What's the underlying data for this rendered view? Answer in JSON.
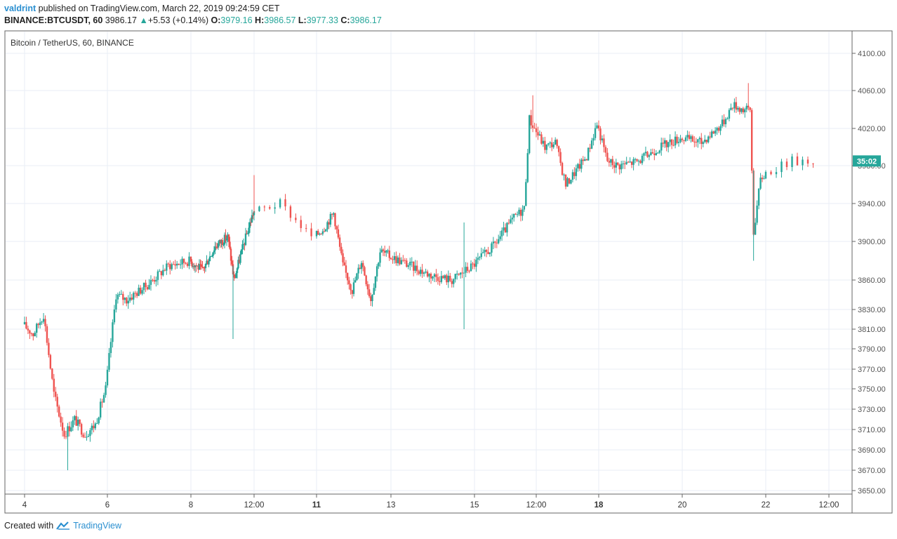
{
  "header": {
    "user": "valdrint",
    "published_text": " published on TradingView.com, March 22, 2019 09:24:59 CET",
    "symbol": "BINANCE:BTCUSDT, 60",
    "last": "3986.17",
    "change_arrow": "▲",
    "change": "+5.53 (+0.14%)",
    "o_label": "O:",
    "o_value": "3979.16",
    "h_label": "H:",
    "h_value": "3986.57",
    "l_label": "L:",
    "l_value": "3977.33",
    "c_label": "C:",
    "c_value": "3986.17"
  },
  "footer": {
    "created_with": "Created with",
    "brand": "TradingView"
  },
  "colors": {
    "up": "#26a69a",
    "down": "#ef5350",
    "grid": "#e8eef5",
    "axis": "#555555",
    "price_tag": "#26a69a"
  },
  "chart_data": {
    "type": "candlestick",
    "title": "Bitcoin / TetherUS, 60, BINANCE",
    "xlabel": "",
    "ylabel": "",
    "ylim": [
      3650,
      4100
    ],
    "y_ticks": [
      "4100.00",
      "4060.00",
      "4020.00",
      "3980.00",
      "3940.00",
      "3900.00",
      "3860.00",
      "3830.00",
      "3810.00",
      "3790.00",
      "3770.00",
      "3750.00",
      "3730.00",
      "3710.00",
      "3690.00",
      "3670.00",
      "3650.00"
    ],
    "x_tick_labels": [
      "4",
      "6",
      "8",
      "12:00",
      "11",
      "13",
      "15",
      "12:00",
      "18",
      "20",
      "22",
      "12:00"
    ],
    "bold_x_ticks": [
      "11",
      "18"
    ],
    "current_price_tag": "35:02",
    "current_price": 3985,
    "grid": true,
    "price_path": [
      {
        "t": "Mar 4 00:00",
        "p": 3815
      },
      {
        "t": "Mar 4 06:00",
        "p": 3805
      },
      {
        "t": "Mar 4 12:00",
        "p": 3825
      },
      {
        "t": "Mar 4 18:00",
        "p": 3745
      },
      {
        "t": "Mar 5 00:00",
        "p": 3705
      },
      {
        "t": "Mar 5 06:00",
        "p": 3720
      },
      {
        "t": "Mar 5 12:00",
        "p": 3705
      },
      {
        "t": "Mar 5 18:00",
        "p": 3715
      },
      {
        "t": "Mar 6 00:00",
        "p": 3750
      },
      {
        "t": "Mar 6 06:00",
        "p": 3845
      },
      {
        "t": "Mar 6 12:00",
        "p": 3840
      },
      {
        "t": "Mar 7 00:00",
        "p": 3855
      },
      {
        "t": "Mar 7 12:00",
        "p": 3875
      },
      {
        "t": "Mar 8 00:00",
        "p": 3880
      },
      {
        "t": "Mar 8 12:00",
        "p": 3870
      },
      {
        "t": "Mar 9 00:00",
        "p": 3895
      },
      {
        "t": "Mar 9 12:00",
        "p": 3905
      },
      {
        "t": "Mar 9 18:00",
        "p": 3860
      },
      {
        "t": "Mar 10 00:00",
        "p": 3885
      },
      {
        "t": "Mar 10 12:00",
        "p": 3930
      },
      {
        "t": "Mar 10 18:00",
        "p": 3940
      },
      {
        "t": "Mar 11 00:00",
        "p": 3905
      },
      {
        "t": "Mar 11 06:00",
        "p": 3915
      },
      {
        "t": "Mar 11 12:00",
        "p": 3930
      },
      {
        "t": "Mar 11 18:00",
        "p": 3875
      },
      {
        "t": "Mar 12 00:00",
        "p": 3850
      },
      {
        "t": "Mar 12 06:00",
        "p": 3880
      },
      {
        "t": "Mar 12 12:00",
        "p": 3840
      },
      {
        "t": "Mar 12 18:00",
        "p": 3890
      },
      {
        "t": "Mar 13 00:00",
        "p": 3885
      },
      {
        "t": "Mar 13 12:00",
        "p": 3875
      },
      {
        "t": "Mar 14 00:00",
        "p": 3865
      },
      {
        "t": "Mar 14 12:00",
        "p": 3860
      },
      {
        "t": "Mar 15 00:00",
        "p": 3875
      },
      {
        "t": "Mar 15 12:00",
        "p": 3895
      },
      {
        "t": "Mar 16 00:00",
        "p": 3925
      },
      {
        "t": "Mar 16 06:00",
        "p": 3935
      },
      {
        "t": "Mar 16 09:00",
        "p": 4030
      },
      {
        "t": "Mar 16 18:00",
        "p": 4000
      },
      {
        "t": "Mar 17 00:00",
        "p": 4005
      },
      {
        "t": "Mar 17 06:00",
        "p": 3960
      },
      {
        "t": "Mar 17 12:00",
        "p": 3975
      },
      {
        "t": "Mar 17 18:00",
        "p": 3990
      },
      {
        "t": "Mar 18 00:00",
        "p": 4025
      },
      {
        "t": "Mar 18 06:00",
        "p": 3985
      },
      {
        "t": "Mar 18 12:00",
        "p": 3980
      },
      {
        "t": "Mar 19 00:00",
        "p": 3985
      },
      {
        "t": "Mar 19 12:00",
        "p": 4000
      },
      {
        "t": "Mar 20 00:00",
        "p": 4010
      },
      {
        "t": "Mar 20 12:00",
        "p": 4005
      },
      {
        "t": "Mar 21 00:00",
        "p": 4025
      },
      {
        "t": "Mar 21 06:00",
        "p": 4045
      },
      {
        "t": "Mar 21 12:00",
        "p": 4040
      },
      {
        "t": "Mar 21 16:00",
        "p": 4040
      },
      {
        "t": "Mar 21 18:00",
        "p": 3910
      },
      {
        "t": "Mar 21 22:00",
        "p": 3965
      },
      {
        "t": "Mar 22 06:00",
        "p": 3985
      },
      {
        "t": "Mar 22 09:00",
        "p": 3986
      }
    ],
    "spikes": [
      {
        "t": "Mar 5 01:00",
        "low": 3670
      },
      {
        "t": "Mar 9 16:00",
        "low": 3800
      },
      {
        "t": "Mar 14 18:00",
        "high": 3920,
        "low": 3810
      },
      {
        "t": "Mar 16 10:00",
        "high": 4055
      },
      {
        "t": "Mar 21 14:00",
        "high": 4068
      },
      {
        "t": "Mar 21 17:00",
        "low": 3880
      },
      {
        "t": "Mar 10 12:00",
        "high": 3970
      }
    ]
  }
}
